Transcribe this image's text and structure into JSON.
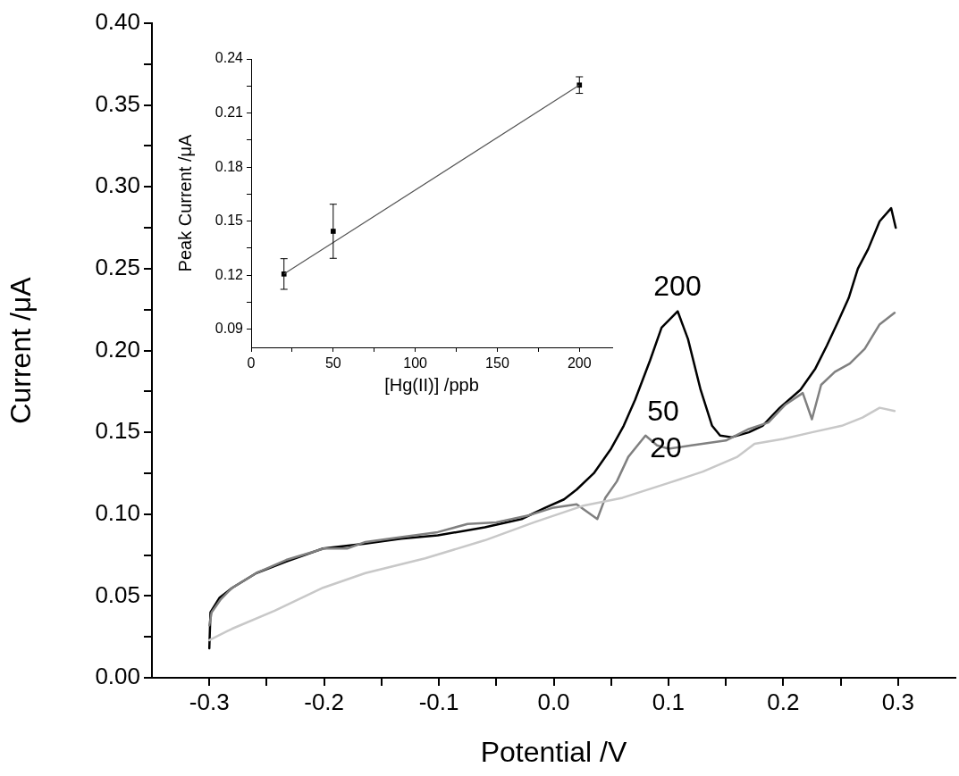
{
  "chart_data": [
    {
      "type": "line",
      "xlabel": "Potential /V",
      "ylabel": "Current /μA",
      "xlim": [
        -0.35,
        0.35
      ],
      "xticks": [
        -0.3,
        {
          "value": -0.25,
          "label": null
        },
        -0.2,
        {
          "value": -0.15,
          "label": null
        },
        -0.1,
        {
          "value": -0.05,
          "label": null
        },
        {
          "value": 0,
          "label": "0.0"
        },
        {
          "value": 0.05,
          "label": null
        },
        0.1,
        {
          "value": 0.15,
          "label": null
        },
        0.2,
        {
          "value": 0.25,
          "label": null
        },
        0.3
      ],
      "ylim": [
        0,
        0.4
      ],
      "yticks": [
        {
          "value": 0,
          "label": "0.00"
        },
        {
          "value": 0.025,
          "label": null
        },
        0.05,
        {
          "value": 0.075,
          "label": null
        },
        {
          "value": 0.1,
          "label": "0.10"
        },
        {
          "value": 0.125,
          "label": null
        },
        0.15,
        {
          "value": 0.175,
          "label": null
        },
        {
          "value": 0.2,
          "label": "0.20"
        },
        {
          "value": 0.225,
          "label": null
        },
        0.25,
        {
          "value": 0.275,
          "label": null
        },
        {
          "value": 0.3,
          "label": "0.30"
        },
        {
          "value": 0.325,
          "label": null
        },
        0.35,
        {
          "value": 0.375,
          "label": null
        },
        {
          "value": 0.4,
          "label": "0.40"
        }
      ],
      "series": [
        {
          "color": "#c8c8c8",
          "x": [
            -0.3,
            -0.28,
            -0.243,
            -0.201,
            -0.164,
            -0.112,
            -0.06,
            -0.017,
            0.025,
            0.06,
            0.1,
            0.13,
            0.16,
            0.175,
            0.2,
            0.225,
            0.251,
            0.269,
            0.284,
            0.297
          ],
          "values": [
            0.023,
            0.03,
            0.041,
            0.055,
            0.064,
            0.073,
            0.084,
            0.095,
            0.105,
            0.11,
            0.119,
            0.126,
            0.135,
            0.143,
            0.146,
            0.15,
            0.154,
            0.159,
            0.165,
            0.163
          ]
        },
        {
          "color": "#808080",
          "x": [
            -0.3,
            -0.298,
            -0.29,
            -0.28,
            -0.259,
            -0.233,
            -0.2,
            -0.18,
            -0.164,
            -0.133,
            -0.101,
            -0.075,
            -0.05,
            -0.023,
            0.0,
            0.02,
            0.038,
            0.045,
            0.055,
            0.065,
            0.08,
            0.09,
            0.1,
            0.12,
            0.15,
            0.17,
            0.187,
            0.202,
            0.217,
            0.225,
            0.233,
            0.245,
            0.258,
            0.271,
            0.284,
            0.297
          ],
          "values": [
            0.032,
            0.04,
            0.048,
            0.055,
            0.064,
            0.072,
            0.079,
            0.079,
            0.083,
            0.086,
            0.089,
            0.094,
            0.095,
            0.099,
            0.104,
            0.106,
            0.097,
            0.11,
            0.12,
            0.135,
            0.148,
            0.142,
            0.14,
            0.142,
            0.145,
            0.152,
            0.156,
            0.167,
            0.174,
            0.158,
            0.179,
            0.187,
            0.192,
            0.201,
            0.216,
            0.223
          ]
        },
        {
          "color": "#000000",
          "x": [
            -0.3,
            -0.299,
            -0.291,
            -0.28,
            -0.259,
            -0.233,
            -0.201,
            -0.164,
            -0.133,
            -0.101,
            -0.06,
            -0.028,
            -0.007,
            0.009,
            0.02,
            0.035,
            0.05,
            0.061,
            0.071,
            0.084,
            0.094,
            0.108,
            0.117,
            0.128,
            0.138,
            0.145,
            0.155,
            0.17,
            0.182,
            0.197,
            0.215,
            0.228,
            0.238,
            0.248,
            0.257,
            0.265,
            0.274,
            0.284,
            0.294,
            0.298
          ],
          "values": [
            0.018,
            0.04,
            0.049,
            0.055,
            0.064,
            0.071,
            0.079,
            0.082,
            0.085,
            0.087,
            0.092,
            0.097,
            0.104,
            0.109,
            0.115,
            0.125,
            0.14,
            0.154,
            0.17,
            0.194,
            0.214,
            0.224,
            0.207,
            0.176,
            0.154,
            0.148,
            0.147,
            0.15,
            0.154,
            0.165,
            0.176,
            0.189,
            0.203,
            0.218,
            0.232,
            0.25,
            0.262,
            0.279,
            0.287,
            0.275
          ]
        }
      ],
      "annotations": [
        "200",
        "50",
        "20"
      ]
    },
    {
      "type": "scatter",
      "xlabel": "[Hg(II)] /ppb",
      "ylabel": "Peak Current /μA",
      "xlim": [
        0,
        220
      ],
      "xticks": [
        0,
        {
          "value": 25,
          "label": null
        },
        50,
        {
          "value": 75,
          "label": null
        },
        100,
        {
          "value": 125,
          "label": null
        },
        150,
        {
          "value": 175,
          "label": null
        },
        200
      ],
      "ylim": [
        0.08,
        0.24
      ],
      "yticks": [
        0.09,
        {
          "value": 0.105,
          "label": null
        },
        0.12,
        {
          "value": 0.135,
          "label": null
        },
        0.15,
        {
          "value": 0.165,
          "label": null
        },
        0.18,
        {
          "value": 0.195,
          "label": null
        },
        0.21,
        {
          "value": 0.225,
          "label": null
        },
        0.24
      ],
      "series": [
        {
          "type": "line",
          "color": "#555555",
          "x": [
            20,
            200
          ],
          "values": [
            0.1207,
            0.2255
          ]
        },
        {
          "type": "scatter",
          "color": "#000000",
          "marker": "square",
          "x": [
            20,
            50,
            200
          ],
          "values": [
            0.1207,
            0.1444,
            0.2255
          ],
          "errors": [
            0.0085,
            0.015,
            0.0046
          ]
        }
      ]
    }
  ]
}
